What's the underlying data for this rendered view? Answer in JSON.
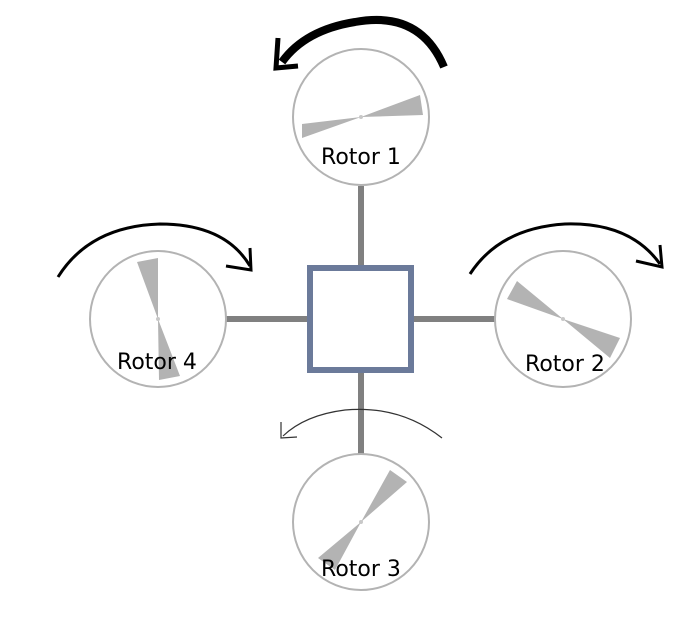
{
  "colors": {
    "background": "#ffffff",
    "arm": "#808080",
    "body_outline": "#6b7a9a",
    "rotor_outline": "#b3b3b3",
    "blade": "#b3b3b3",
    "arrow": "#000000"
  },
  "rotors": [
    {
      "id": 1,
      "label": "Rotor 1",
      "rotation": "counter-clockwise"
    },
    {
      "id": 2,
      "label": "Rotor 2",
      "rotation": "clockwise"
    },
    {
      "id": 3,
      "label": "Rotor 3",
      "rotation": "counter-clockwise"
    },
    {
      "id": 4,
      "label": "Rotor 4",
      "rotation": "clockwise"
    }
  ]
}
